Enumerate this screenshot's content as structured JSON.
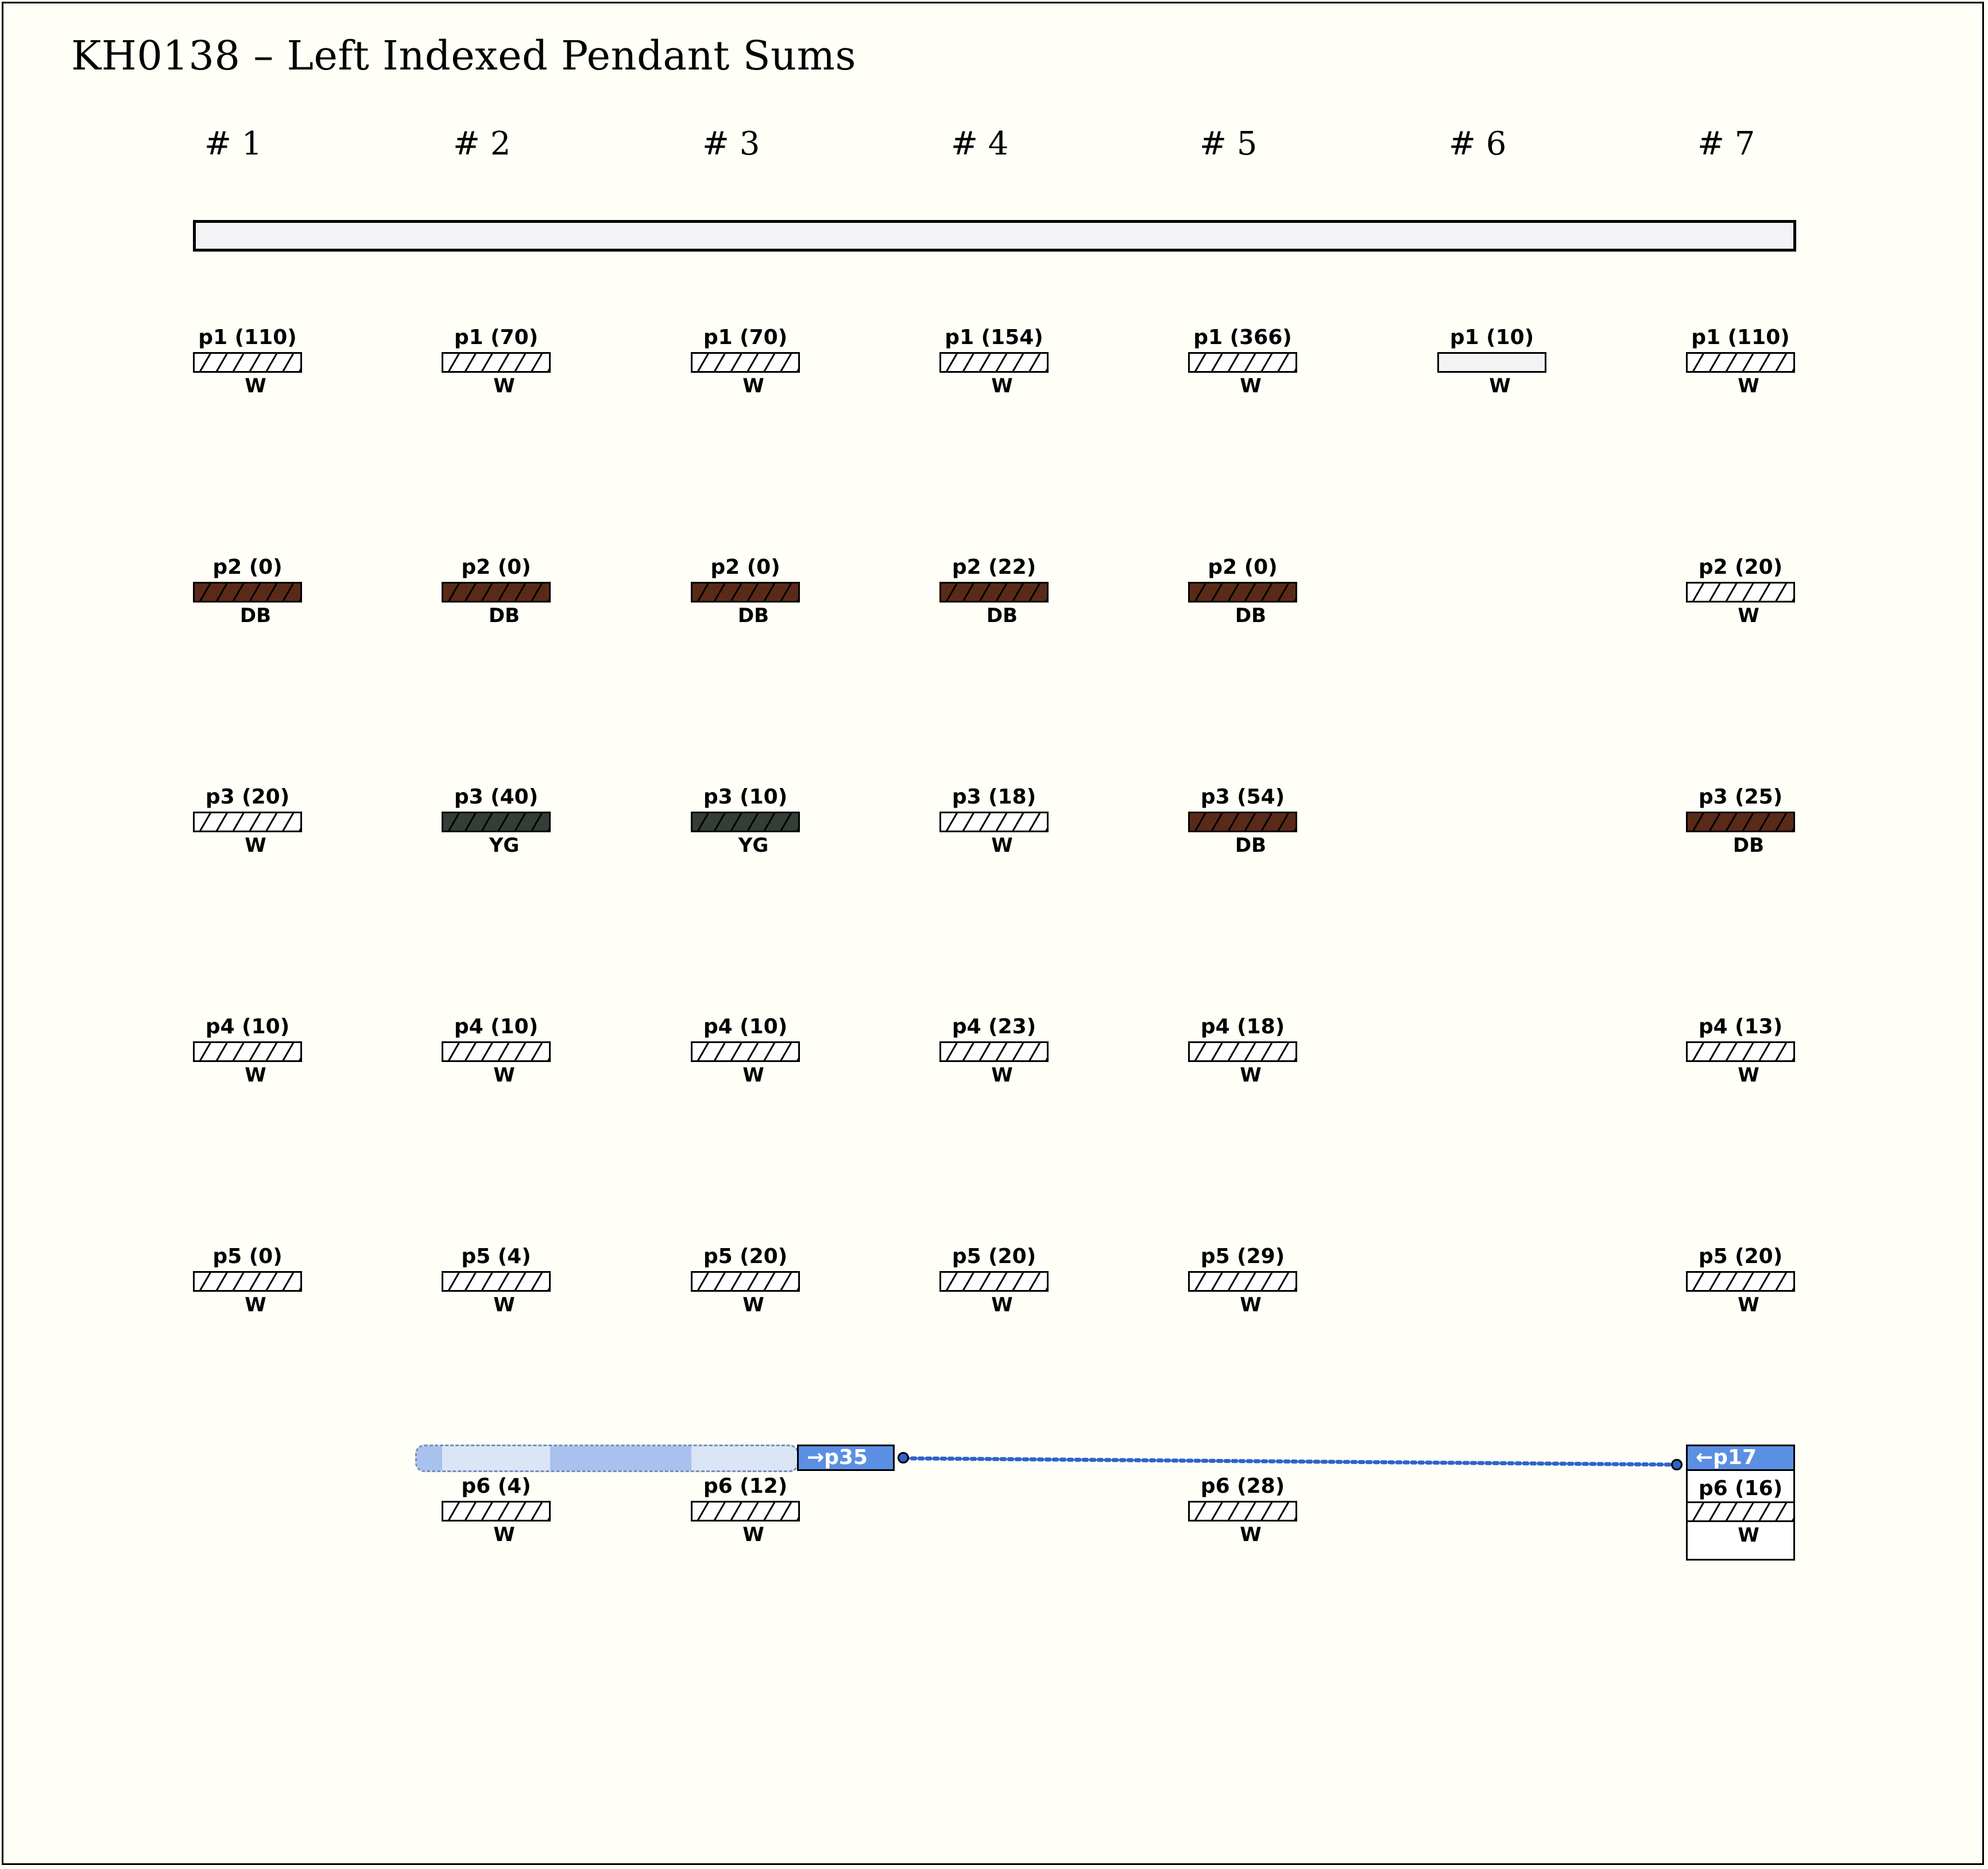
{
  "title": "KH0138 – Left Indexed Pendant Sums",
  "groups": [
    "# 1",
    "# 2",
    "# 3",
    "# 4",
    "# 5",
    "# 6",
    "# 7"
  ],
  "colors": {
    "W": "#ffffff",
    "DB": "#5a2a18",
    "YG": "#343d36",
    "plain": "#f3f3f5",
    "link": "#2f63c9",
    "tag": "#5b8fe3"
  },
  "pendants": [
    {
      "group": 1,
      "row": 1,
      "label": "p1 (110)",
      "color": "W",
      "hatch": true
    },
    {
      "group": 2,
      "row": 1,
      "label": "p1 (70)",
      "color": "W",
      "hatch": true
    },
    {
      "group": 3,
      "row": 1,
      "label": "p1 (70)",
      "color": "W",
      "hatch": true
    },
    {
      "group": 4,
      "row": 1,
      "label": "p1 (154)",
      "color": "W",
      "hatch": true
    },
    {
      "group": 5,
      "row": 1,
      "label": "p1 (366)",
      "color": "W",
      "hatch": true
    },
    {
      "group": 6,
      "row": 1,
      "label": "p1 (10)",
      "color": "W",
      "hatch": false
    },
    {
      "group": 7,
      "row": 1,
      "label": "p1 (110)",
      "color": "W",
      "hatch": true
    },
    {
      "group": 1,
      "row": 2,
      "label": "p2 (0)",
      "color": "DB",
      "hatch": true
    },
    {
      "group": 2,
      "row": 2,
      "label": "p2 (0)",
      "color": "DB",
      "hatch": true
    },
    {
      "group": 3,
      "row": 2,
      "label": "p2 (0)",
      "color": "DB",
      "hatch": true
    },
    {
      "group": 4,
      "row": 2,
      "label": "p2 (22)",
      "color": "DB",
      "hatch": true
    },
    {
      "group": 5,
      "row": 2,
      "label": "p2 (0)",
      "color": "DB",
      "hatch": true
    },
    {
      "group": 7,
      "row": 2,
      "label": "p2 (20)",
      "color": "W",
      "hatch": true
    },
    {
      "group": 1,
      "row": 3,
      "label": "p3 (20)",
      "color": "W",
      "hatch": true
    },
    {
      "group": 2,
      "row": 3,
      "label": "p3 (40)",
      "color": "YG",
      "hatch": true
    },
    {
      "group": 3,
      "row": 3,
      "label": "p3 (10)",
      "color": "YG",
      "hatch": true
    },
    {
      "group": 4,
      "row": 3,
      "label": "p3 (18)",
      "color": "W",
      "hatch": true
    },
    {
      "group": 5,
      "row": 3,
      "label": "p3 (54)",
      "color": "DB",
      "hatch": true
    },
    {
      "group": 7,
      "row": 3,
      "label": "p3 (25)",
      "color": "DB",
      "hatch": true
    },
    {
      "group": 1,
      "row": 4,
      "label": "p4 (10)",
      "color": "W",
      "hatch": true
    },
    {
      "group": 2,
      "row": 4,
      "label": "p4 (10)",
      "color": "W",
      "hatch": true
    },
    {
      "group": 3,
      "row": 4,
      "label": "p4 (10)",
      "color": "W",
      "hatch": true
    },
    {
      "group": 4,
      "row": 4,
      "label": "p4 (23)",
      "color": "W",
      "hatch": true
    },
    {
      "group": 5,
      "row": 4,
      "label": "p4 (18)",
      "color": "W",
      "hatch": true
    },
    {
      "group": 7,
      "row": 4,
      "label": "p4 (13)",
      "color": "W",
      "hatch": true
    },
    {
      "group": 1,
      "row": 5,
      "label": "p5 (0)",
      "color": "W",
      "hatch": true
    },
    {
      "group": 2,
      "row": 5,
      "label": "p5 (4)",
      "color": "W",
      "hatch": true
    },
    {
      "group": 3,
      "row": 5,
      "label": "p5 (20)",
      "color": "W",
      "hatch": true
    },
    {
      "group": 4,
      "row": 5,
      "label": "p5 (20)",
      "color": "W",
      "hatch": true
    },
    {
      "group": 5,
      "row": 5,
      "label": "p5 (29)",
      "color": "W",
      "hatch": true
    },
    {
      "group": 7,
      "row": 5,
      "label": "p5 (20)",
      "color": "W",
      "hatch": true
    },
    {
      "group": 2,
      "row": 6,
      "label": "p6 (4)",
      "color": "W",
      "hatch": true
    },
    {
      "group": 3,
      "row": 6,
      "label": "p6 (12)",
      "color": "W",
      "hatch": true
    },
    {
      "group": 5,
      "row": 6,
      "label": "p6 (28)",
      "color": "W",
      "hatch": true
    },
    {
      "group": 7,
      "row": 6,
      "label": "p6 (16)",
      "color": "W",
      "hatch": true,
      "boxed": true
    }
  ],
  "sum_link": {
    "source_tag": "→p35",
    "target_tag": "←p17"
  }
}
